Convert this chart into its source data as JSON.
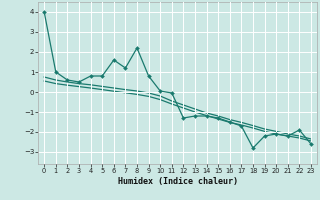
{
  "title": "",
  "xlabel": "Humidex (Indice chaleur)",
  "bg_color": "#cce8e4",
  "line_color": "#1a7a6e",
  "grid_color": "#ffffff",
  "xlim": [
    -0.5,
    23.5
  ],
  "ylim": [
    -3.6,
    4.5
  ],
  "yticks": [
    -3,
    -2,
    -1,
    0,
    1,
    2,
    3,
    4
  ],
  "xticks": [
    0,
    1,
    2,
    3,
    4,
    5,
    6,
    7,
    8,
    9,
    10,
    11,
    12,
    13,
    14,
    15,
    16,
    17,
    18,
    19,
    20,
    21,
    22,
    23
  ],
  "x": [
    0,
    1,
    2,
    3,
    4,
    5,
    6,
    7,
    8,
    9,
    10,
    11,
    12,
    13,
    14,
    15,
    16,
    17,
    18,
    19,
    20,
    21,
    22,
    23
  ],
  "y_main": [
    4.0,
    1.0,
    0.6,
    0.5,
    0.8,
    0.8,
    1.6,
    1.2,
    2.2,
    0.8,
    0.05,
    -0.05,
    -1.3,
    -1.2,
    -1.2,
    -1.3,
    -1.5,
    -1.7,
    -2.8,
    -2.2,
    -2.1,
    -2.2,
    -1.9,
    -2.6
  ],
  "y_trend1": [
    0.75,
    0.6,
    0.5,
    0.42,
    0.36,
    0.28,
    0.2,
    0.12,
    0.05,
    -0.05,
    -0.2,
    -0.45,
    -0.65,
    -0.85,
    -1.05,
    -1.2,
    -1.38,
    -1.52,
    -1.68,
    -1.85,
    -1.97,
    -2.1,
    -2.2,
    -2.35
  ],
  "y_trend2": [
    0.55,
    0.42,
    0.34,
    0.27,
    0.2,
    0.12,
    0.04,
    -0.04,
    -0.12,
    -0.22,
    -0.38,
    -0.6,
    -0.8,
    -1.0,
    -1.18,
    -1.35,
    -1.52,
    -1.65,
    -1.8,
    -1.97,
    -2.1,
    -2.2,
    -2.3,
    -2.45
  ]
}
